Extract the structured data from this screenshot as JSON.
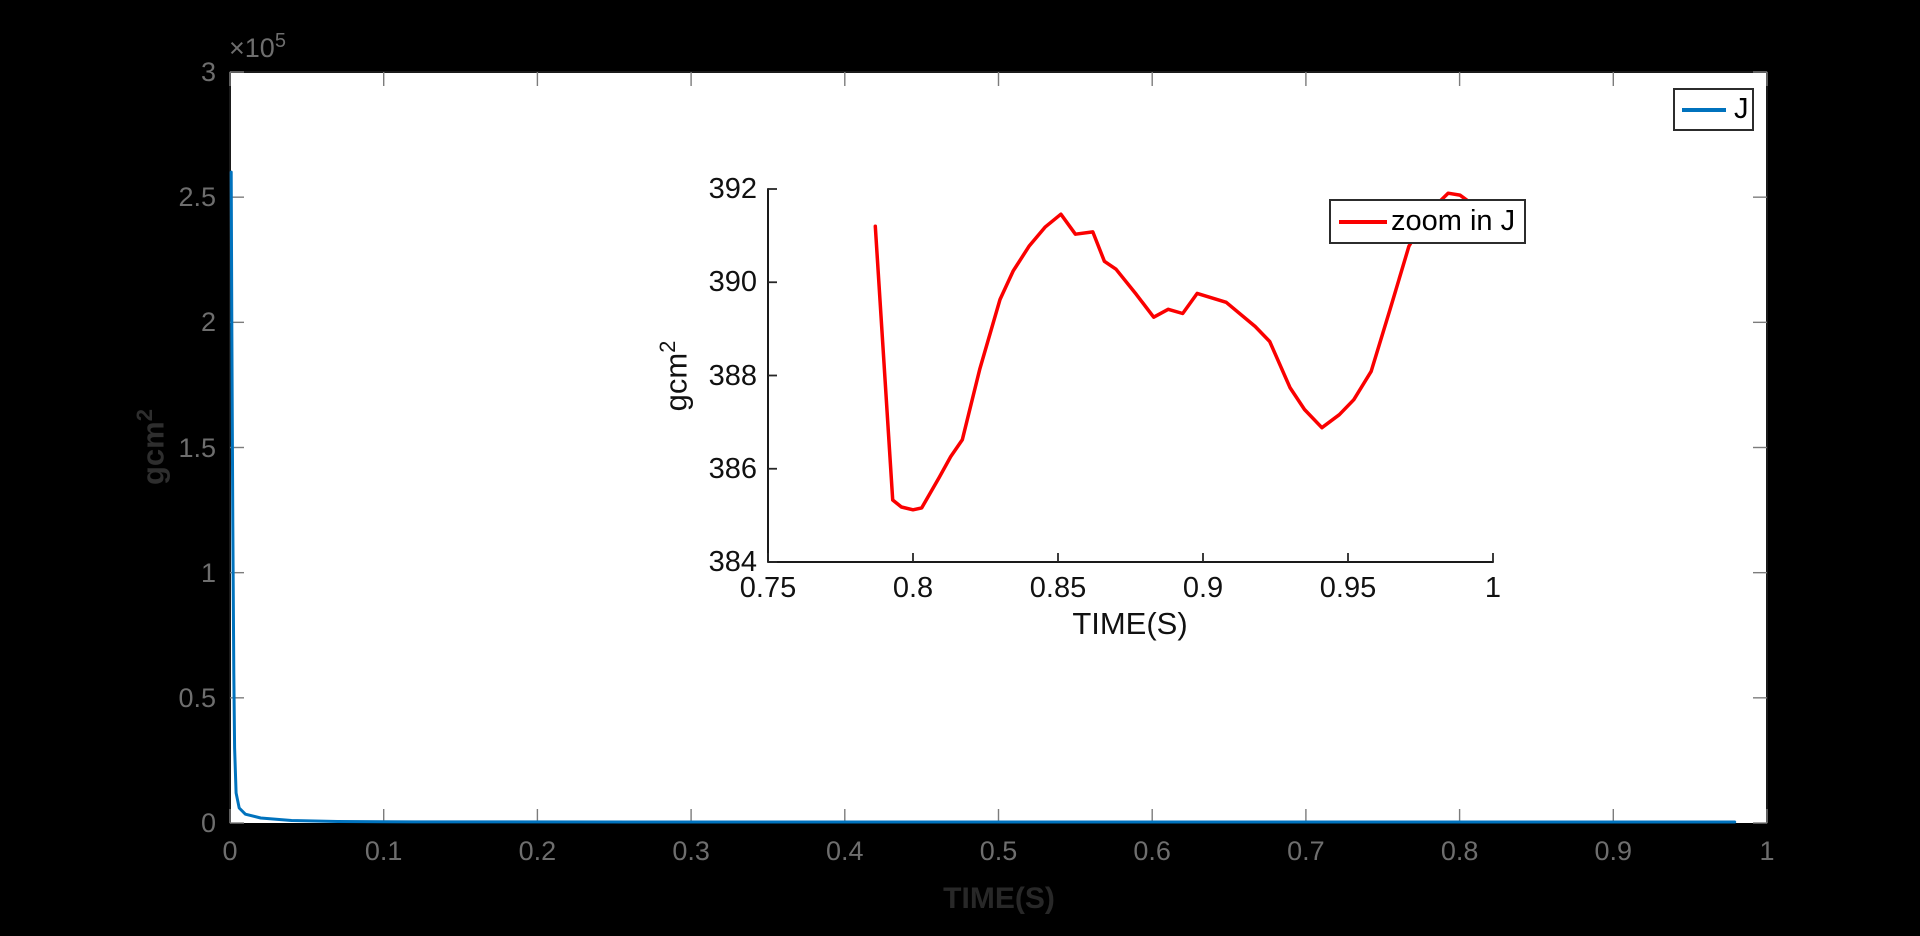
{
  "figure": {
    "background_color": "#000000",
    "plot_background_color": "#ffffff",
    "axis_color": "#1a1a1a",
    "main_tick_label_color": "#6e6e6e",
    "inset_tick_label_color": "#111111"
  },
  "chart_data": [
    {
      "id": "main",
      "type": "line",
      "xlabel": "TIME(S)",
      "ylabel_base": "gcm",
      "ylabel_sup": "2",
      "y_multiplier_base": "×10",
      "y_multiplier_sup": "5",
      "xlim": [
        0,
        1
      ],
      "ylim": [
        0,
        300000
      ],
      "grid": false,
      "box": true,
      "xticks": {
        "values": [
          0,
          0.1,
          0.2,
          0.3,
          0.4,
          0.5,
          0.6,
          0.7,
          0.8,
          0.9,
          1
        ],
        "labels": [
          "0",
          "0.1",
          "0.2",
          "0.3",
          "0.4",
          "0.5",
          "0.6",
          "0.7",
          "0.8",
          "0.9",
          "1"
        ]
      },
      "yticks": {
        "values": [
          0,
          50000,
          100000,
          150000,
          200000,
          250000,
          300000
        ],
        "labels": [
          "0",
          "0.5",
          "1",
          "1.5",
          "2",
          "2.5",
          "3"
        ]
      },
      "legend": {
        "label": "J",
        "position": "top-right"
      },
      "series": [
        {
          "name": "J",
          "color": "#0072bd",
          "line_width": 3,
          "points": [
            [
              0.0008,
              260000
            ],
            [
              0.0012,
              200000
            ],
            [
              0.0018,
              120000
            ],
            [
              0.0025,
              60000
            ],
            [
              0.003,
              30000
            ],
            [
              0.004,
              12000
            ],
            [
              0.006,
              6000
            ],
            [
              0.01,
              3500
            ],
            [
              0.02,
              2000
            ],
            [
              0.04,
              1000
            ],
            [
              0.07,
              600
            ],
            [
              0.12,
              450
            ],
            [
              0.3,
              400
            ],
            [
              0.6,
              390
            ],
            [
              0.979,
              388
            ]
          ]
        }
      ]
    },
    {
      "id": "inset",
      "type": "line",
      "xlabel": "TIME(S)",
      "ylabel_base": "gcm",
      "ylabel_sup": "2",
      "xlim": [
        0.75,
        1
      ],
      "ylim": [
        384,
        392
      ],
      "grid": false,
      "box": false,
      "xticks": {
        "values": [
          0.75,
          0.8,
          0.85,
          0.9,
          0.95,
          1
        ],
        "labels": [
          "0.75",
          "0.8",
          "0.85",
          "0.9",
          "0.95",
          "1"
        ]
      },
      "yticks": {
        "values": [
          384,
          386,
          388,
          390,
          392
        ],
        "labels": [
          "384",
          "386",
          "388",
          "390",
          "392"
        ]
      },
      "legend": {
        "label": "zoom in J",
        "position": "top-right-inside"
      },
      "series": [
        {
          "name": "zoom in J",
          "color": "#fa0000",
          "line_width": 3.5,
          "points": [
            [
              0.787,
              391.2
            ],
            [
              0.793,
              385.33
            ],
            [
              0.796,
              385.18
            ],
            [
              0.8,
              385.12
            ],
            [
              0.803,
              385.16
            ],
            [
              0.809,
              385.81
            ],
            [
              0.813,
              386.26
            ],
            [
              0.817,
              386.62
            ],
            [
              0.823,
              388.13
            ],
            [
              0.83,
              389.63
            ],
            [
              0.8345,
              390.24
            ],
            [
              0.84,
              390.77
            ],
            [
              0.8455,
              391.18
            ],
            [
              0.851,
              391.46
            ],
            [
              0.856,
              391.03
            ],
            [
              0.862,
              391.08
            ],
            [
              0.866,
              390.45
            ],
            [
              0.87,
              390.28
            ],
            [
              0.877,
              389.74
            ],
            [
              0.883,
              389.25
            ],
            [
              0.888,
              389.42
            ],
            [
              0.893,
              389.33
            ],
            [
              0.898,
              389.76
            ],
            [
              0.908,
              389.57
            ],
            [
              0.918,
              389.05
            ],
            [
              0.923,
              388.73
            ],
            [
              0.93,
              387.74
            ],
            [
              0.935,
              387.27
            ],
            [
              0.941,
              386.88
            ],
            [
              0.947,
              387.16
            ],
            [
              0.952,
              387.48
            ],
            [
              0.958,
              388.09
            ],
            [
              0.9645,
              389.42
            ],
            [
              0.971,
              390.77
            ],
            [
              0.978,
              391.51
            ],
            [
              0.9845,
              391.91
            ],
            [
              0.9886,
              391.87
            ],
            [
              0.991,
              391.76
            ]
          ]
        }
      ]
    }
  ]
}
